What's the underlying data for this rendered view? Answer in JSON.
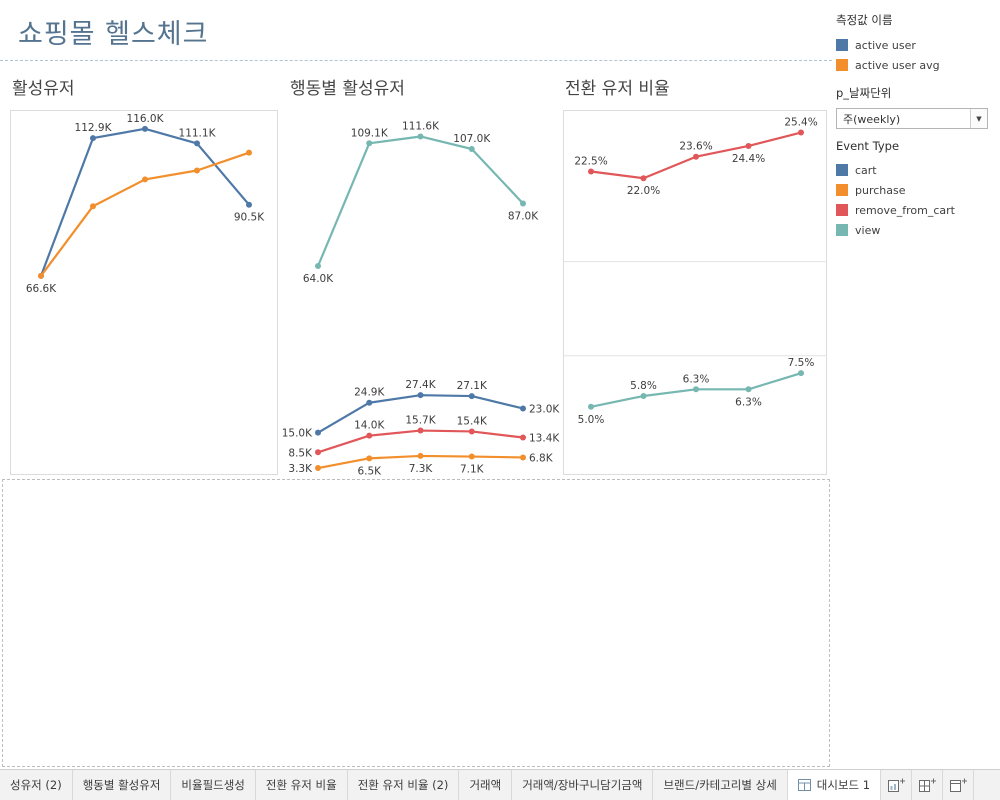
{
  "header": {
    "title": "쇼핑몰 헬스체크"
  },
  "sidebar": {
    "measure_names": {
      "title": "측정값 이름",
      "items": [
        {
          "label": "active user",
          "color": "#4e79a7"
        },
        {
          "label": "active user avg",
          "color": "#f28e2b"
        }
      ]
    },
    "date_param": {
      "title": "p_날짜단위",
      "value": "주(weekly)",
      "caret_icon": "▼"
    },
    "event_type": {
      "title": "Event Type",
      "items": [
        {
          "label": "cart",
          "color": "#4e79a7"
        },
        {
          "label": "purchase",
          "color": "#f28e2b"
        },
        {
          "label": "remove_from_cart",
          "color": "#e15759"
        },
        {
          "label": "view",
          "color": "#76b7b2"
        }
      ]
    }
  },
  "tabs": [
    {
      "label": "성유저 (2)"
    },
    {
      "label": "행동별 활성유저"
    },
    {
      "label": "비율필드생성"
    },
    {
      "label": "전환 유저 비율"
    },
    {
      "label": "전환 유저 비율 (2)"
    },
    {
      "label": "거래액"
    },
    {
      "label": "거래액/장바구니담기금액"
    },
    {
      "label": "브랜드/카테고리별 상세"
    },
    {
      "label": "대시보드 1",
      "active": true
    }
  ],
  "footer_actions": [
    {
      "name": "new-worksheet"
    },
    {
      "name": "new-dashboard"
    },
    {
      "name": "new-story"
    }
  ],
  "chart_data": [
    {
      "id": "active-users",
      "type": "line",
      "title": "활성유저",
      "unit": "K",
      "ylim": [
        0,
        122
      ],
      "xpad": [
        30,
        28
      ],
      "grid": false,
      "series": [
        {
          "name": "active user",
          "color": "#4e79a7",
          "values": [
            66.6,
            112.9,
            116.0,
            111.1,
            90.5
          ],
          "labels": [
            "66.6K",
            "112.9K",
            "116.0K",
            "111.1K",
            "90.5K"
          ],
          "label_pos": [
            "below",
            "above",
            "above",
            "above",
            "below"
          ]
        },
        {
          "name": "active user avg",
          "color": "#f28e2b",
          "values": [
            66.6,
            90.0,
            99.0,
            102.0,
            108.0
          ]
        }
      ]
    },
    {
      "id": "behavior-view",
      "type": "line",
      "title": "행동별 활성유저",
      "unit": "K",
      "ylim": [
        35,
        125
      ],
      "xpad": [
        30,
        32
      ],
      "grid": false,
      "series": [
        {
          "name": "view",
          "color": "#76b7b2",
          "values": [
            64.0,
            109.1,
            111.6,
            107.0,
            87.0
          ],
          "labels": [
            "64.0K",
            "109.1K",
            "111.6K",
            "107.0K",
            "87.0K"
          ],
          "label_pos": [
            "below",
            "above",
            "above",
            "above",
            "below"
          ]
        }
      ]
    },
    {
      "id": "behavior-cart-remove-purchase",
      "type": "line",
      "unit": "K",
      "ylim": [
        0,
        44
      ],
      "xpad": [
        30,
        32
      ],
      "grid": false,
      "series": [
        {
          "name": "cart",
          "color": "#4e79a7",
          "values": [
            15.0,
            24.9,
            27.4,
            27.1,
            23.0
          ],
          "labels": [
            "15.0K",
            "24.9K",
            "27.4K",
            "27.1K",
            "23.0K"
          ],
          "label_pos": [
            "left",
            "above",
            "above",
            "above",
            "right"
          ]
        },
        {
          "name": "remove_from_cart",
          "color": "#e15759",
          "values": [
            8.5,
            14.0,
            15.7,
            15.4,
            13.4
          ],
          "labels": [
            "8.5K",
            "14.0K",
            "15.7K",
            "15.4K",
            "13.4K"
          ],
          "label_pos": [
            "left",
            "above",
            "above",
            "above",
            "right"
          ]
        },
        {
          "name": "purchase",
          "color": "#f28e2b",
          "values": [
            3.3,
            6.5,
            7.3,
            7.1,
            6.8
          ],
          "labels": [
            "3.3K",
            "6.5K",
            "7.3K",
            "7.1K",
            "6.8K"
          ],
          "label_pos": [
            "left",
            "below",
            "below",
            "below",
            "right"
          ]
        }
      ]
    },
    {
      "id": "conversion-ratio",
      "type": "line",
      "title": "전환 유저 비율",
      "unit": "%",
      "ylim": [
        0,
        27
      ],
      "xpad": [
        27,
        25
      ],
      "gridlines": [
        8.8,
        15.8
      ],
      "series": [
        {
          "name": "remove_from_cart",
          "color": "#e15759",
          "values": [
            22.5,
            22.0,
            23.6,
            24.4,
            25.4
          ],
          "labels": [
            "22.5%",
            "22.0%",
            "23.6%",
            "24.4%",
            "25.4%"
          ],
          "label_pos": [
            "above",
            "below",
            "above",
            "below",
            "above"
          ]
        },
        {
          "name": "view",
          "color": "#76b7b2",
          "values": [
            5.0,
            5.8,
            6.3,
            6.3,
            7.5
          ],
          "labels": [
            "5.0%",
            "5.8%",
            "6.3%",
            "6.3%",
            "7.5%"
          ],
          "label_pos": [
            "below",
            "above",
            "above",
            "below",
            "above"
          ]
        }
      ]
    }
  ]
}
